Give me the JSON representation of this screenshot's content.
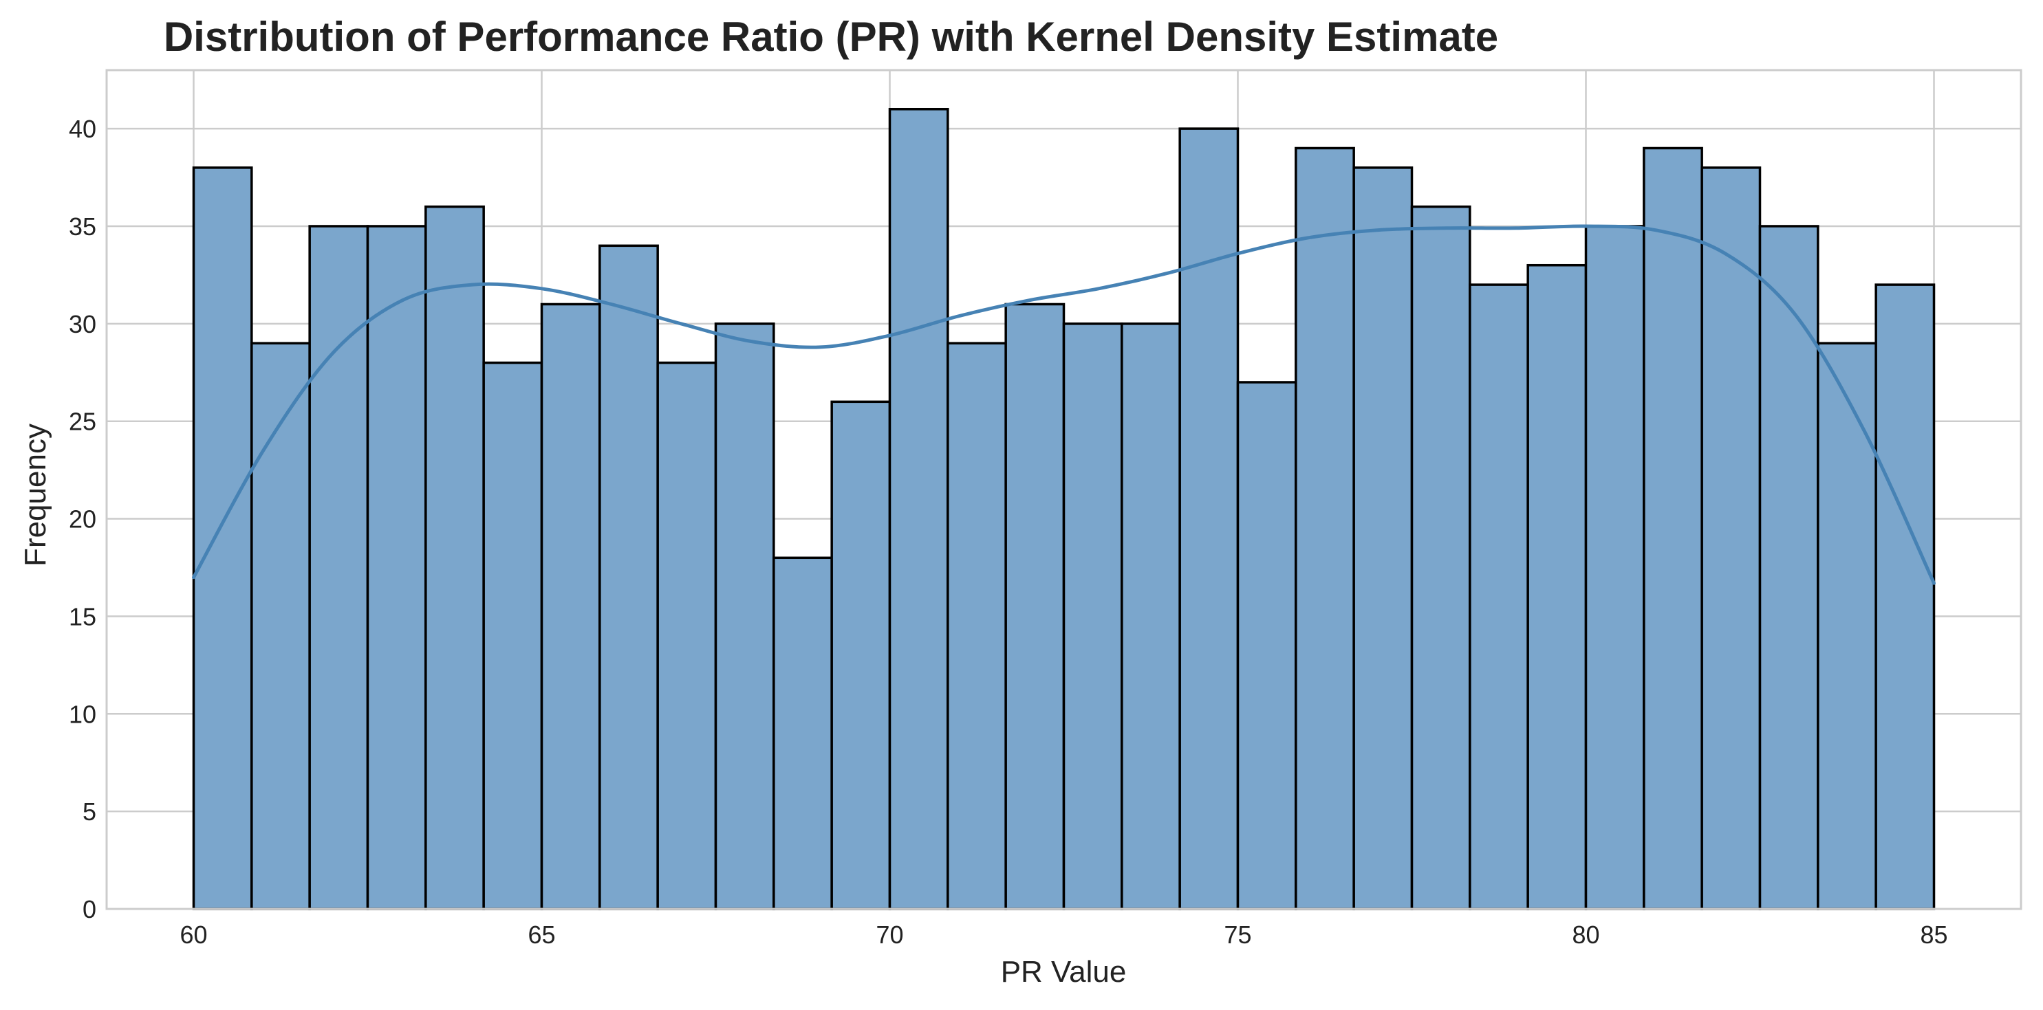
{
  "chart_data": {
    "type": "bar",
    "title": "Distribution of Performance Ratio (PR) with Kernel Density Estimate",
    "xlabel": "PR Value",
    "ylabel": "Frequency",
    "xlim": [
      58.75,
      86.25
    ],
    "ylim": [
      0,
      43
    ],
    "xticks": [
      60,
      65,
      70,
      75,
      80,
      85
    ],
    "yticks": [
      0,
      5,
      10,
      15,
      20,
      25,
      30,
      35,
      40
    ],
    "grid": true,
    "bins": {
      "start": 60,
      "end": 85,
      "counts": [
        38,
        29,
        35,
        35,
        36,
        28,
        31,
        34,
        28,
        30,
        18,
        26,
        41,
        29,
        31,
        30,
        30,
        40,
        27,
        39,
        38,
        36,
        32,
        33,
        35,
        39,
        38,
        35,
        29,
        32
      ]
    },
    "kde": {
      "x": [
        60,
        61,
        62,
        63,
        64,
        65,
        66,
        67,
        68,
        69,
        70,
        71,
        72,
        73,
        74,
        75,
        76,
        77,
        78,
        79,
        80,
        81,
        82,
        83,
        84,
        85
      ],
      "y": [
        17.0,
        23.5,
        28.5,
        31.2,
        32.0,
        31.8,
        31.0,
        30.0,
        29.1,
        28.8,
        29.4,
        30.4,
        31.2,
        31.8,
        32.6,
        33.6,
        34.4,
        34.8,
        34.9,
        34.9,
        35.0,
        34.8,
        33.6,
        30.5,
        24.5,
        16.7
      ]
    },
    "colors": {
      "bar_fill": "#7ba6cc",
      "bar_edge": "#000000",
      "kde_line": "#4682b4"
    }
  }
}
